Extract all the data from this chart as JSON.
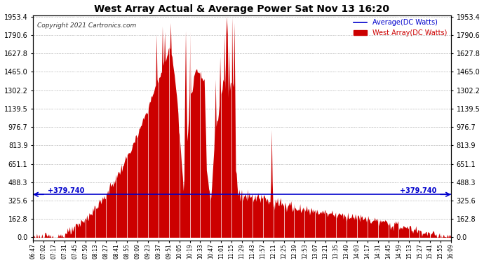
{
  "title": "West Array Actual & Average Power Sat Nov 13 16:20",
  "copyright": "Copyright 2021 Cartronics.com",
  "legend_avg": "Average(DC Watts)",
  "legend_west": "West Array(DC Watts)",
  "avg_value": 379.74,
  "avg_label": "+379.740",
  "ymax": 1953.4,
  "yticks": [
    0.0,
    162.8,
    325.6,
    488.3,
    651.1,
    813.9,
    976.7,
    1139.5,
    1302.2,
    1465.0,
    1627.8,
    1790.6,
    1953.4
  ],
  "background_color": "#ffffff",
  "fill_color": "#cc0000",
  "avg_line_color": "#0000cc",
  "grid_color": "#bbbbbb",
  "xtick_labels": [
    "06:47",
    "07:02",
    "07:17",
    "07:31",
    "07:45",
    "07:59",
    "08:13",
    "08:27",
    "08:41",
    "08:55",
    "09:09",
    "09:23",
    "09:37",
    "09:51",
    "10:05",
    "10:19",
    "10:33",
    "10:47",
    "11:01",
    "11:15",
    "11:29",
    "11:43",
    "11:57",
    "12:11",
    "12:25",
    "12:39",
    "12:53",
    "13:07",
    "13:21",
    "13:35",
    "13:49",
    "14:03",
    "14:17",
    "14:31",
    "14:45",
    "14:59",
    "15:13",
    "15:27",
    "15:41",
    "15:55",
    "16:09"
  ],
  "n_ticks": 41,
  "figsize": [
    6.9,
    3.75
  ],
  "dpi": 100
}
